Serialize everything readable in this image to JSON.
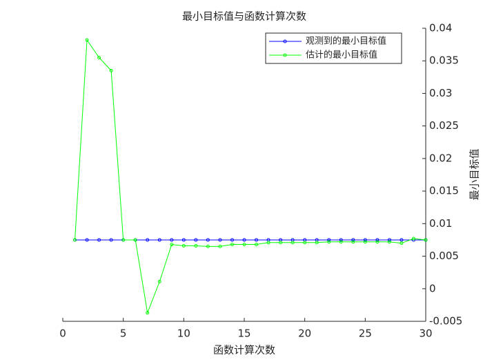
{
  "chart_data": {
    "type": "line",
    "title": "最小目标值与函数计算次数",
    "x_label": "函数计算次数",
    "y_label": "最小目标值",
    "x": [
      1,
      2,
      3,
      4,
      5,
      6,
      7,
      8,
      9,
      10,
      11,
      12,
      13,
      14,
      15,
      16,
      17,
      18,
      19,
      20,
      21,
      22,
      23,
      24,
      25,
      26,
      27,
      28,
      29,
      30
    ],
    "series": [
      {
        "name": "观测到的最小目标值",
        "color": "#0000ff",
        "values": [
          0.0075,
          0.0075,
          0.0075,
          0.0075,
          0.0075,
          0.0075,
          0.0075,
          0.0075,
          0.0075,
          0.0075,
          0.0075,
          0.0075,
          0.0075,
          0.0075,
          0.0075,
          0.0075,
          0.0075,
          0.0075,
          0.0075,
          0.0075,
          0.0075,
          0.0075,
          0.0075,
          0.0075,
          0.0075,
          0.0075,
          0.0075,
          0.0075,
          0.0075,
          0.0075
        ]
      },
      {
        "name": "估计的最小目标值",
        "color": "#00ff00",
        "values": [
          0.0075,
          0.0382,
          0.0355,
          0.0335,
          0.0075,
          0.0075,
          -0.0037,
          0.0011,
          0.0068,
          0.0066,
          0.0066,
          0.0065,
          0.0065,
          0.0068,
          0.0068,
          0.0068,
          0.0071,
          0.0071,
          0.0071,
          0.0071,
          0.0071,
          0.0072,
          0.0072,
          0.0072,
          0.0072,
          0.0072,
          0.0072,
          0.007,
          0.0077,
          0.0075
        ]
      }
    ],
    "xlim": [
      0,
      30
    ],
    "xticks": [
      0,
      5,
      10,
      15,
      20,
      25,
      30
    ],
    "ylim": [
      -0.005,
      0.04
    ],
    "yticks": [
      -0.005,
      0,
      0.005,
      0.01,
      0.015,
      0.02,
      0.025,
      0.03,
      0.035,
      0.04
    ],
    "y_axis_side": "right",
    "legend_position": "upper right",
    "grid": false
  }
}
